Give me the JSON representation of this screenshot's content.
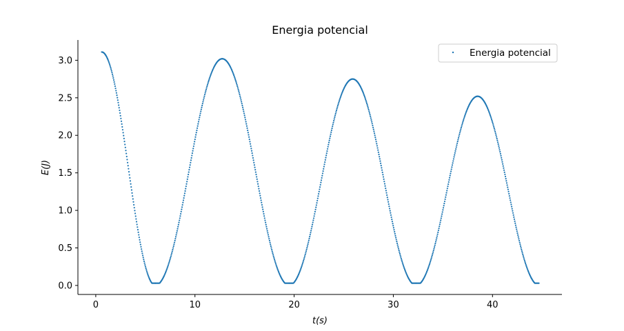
{
  "chart_data": {
    "type": "scatter",
    "title": "Energia potencial",
    "xlabel": "t(s)",
    "ylabel": "E(J)",
    "xlim": [
      -1.8,
      47.0
    ],
    "ylim": [
      -0.12,
      3.27
    ],
    "xticks": [
      0,
      10,
      20,
      30,
      40
    ],
    "yticks": [
      0.0,
      0.5,
      1.0,
      1.5,
      2.0,
      2.5,
      3.0
    ],
    "xtick_labels": [
      "0",
      "10",
      "20",
      "30",
      "40"
    ],
    "ytick_labels": [
      "0.0",
      "0.5",
      "1.0",
      "1.5",
      "2.0",
      "2.5",
      "3.0"
    ],
    "legend_position": "top-right",
    "grid": false,
    "color": "#1f77b4",
    "series": [
      {
        "name": "Energia potencial",
        "segments": [
          {
            "t_start": 0.6,
            "t_end": 6.0,
            "peak_t": 0.6,
            "peak": 3.11,
            "zero_t": 6.0
          },
          {
            "t_start": 6.0,
            "t_end": 19.5,
            "peak_t": 12.6,
            "peak": 3.02,
            "zero_t": 19.5
          },
          {
            "t_start": 19.5,
            "t_end": 32.3,
            "peak_t": 26.0,
            "peak": 2.75,
            "zero_t": 32.3
          },
          {
            "t_start": 32.3,
            "t_end": 44.7,
            "peak_t": 38.6,
            "peak": 2.52,
            "zero_t": 44.7
          }
        ]
      }
    ]
  }
}
